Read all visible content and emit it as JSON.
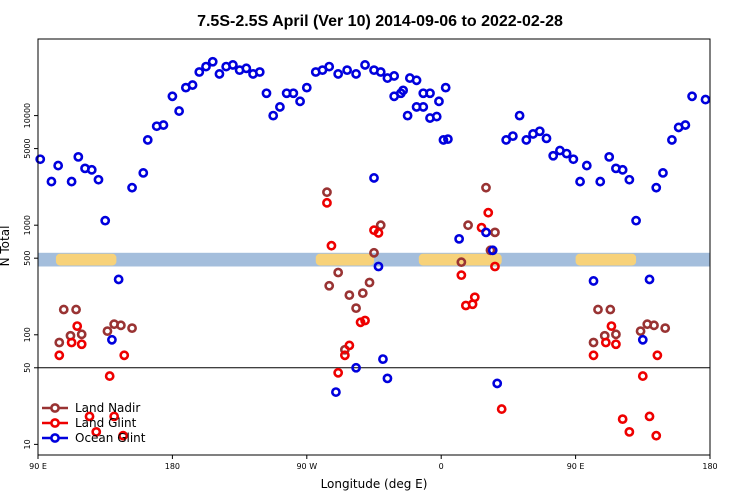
{
  "chart_data": {
    "type": "scatter",
    "title": "7.5S-2.5S April (Ver 10)   2014-09-06 to 2022-02-28",
    "xlabel": "Longitude (deg E)",
    "ylabel": "N Total",
    "x_scale": "linear",
    "y_scale": "log",
    "xlim": [
      90,
      390
    ],
    "ylim": [
      8,
      50000
    ],
    "x_ticks": [
      {
        "value": 90,
        "label": "90 E"
      },
      {
        "value": 150,
        "label": "180"
      },
      {
        "value": 210,
        "label": "90 W"
      },
      {
        "value": 270,
        "label": "0"
      },
      {
        "value": 330,
        "label": "90 E"
      },
      {
        "value": 390,
        "label": "180"
      }
    ],
    "y_ticks": [
      {
        "value": 10,
        "label": "10"
      },
      {
        "value": 50,
        "label": "50"
      },
      {
        "value": 100,
        "label": "100"
      },
      {
        "value": 500,
        "label": "500"
      },
      {
        "value": 1000,
        "label": "1000"
      },
      {
        "value": 5000,
        "label": "5000"
      },
      {
        "value": 10000,
        "label": "10000"
      }
    ],
    "reference_line_y": 50,
    "land_band": {
      "y_low": 420,
      "y_high": 560,
      "band_color": "#a4bedc",
      "land_color": "#f7d27a",
      "land_segments": [
        [
          98,
          125
        ],
        [
          214,
          240
        ],
        [
          260,
          297
        ],
        [
          330,
          357
        ]
      ]
    },
    "legend_placement": "bottom-left",
    "series": [
      {
        "name": "Land Nadir",
        "color": "#993333",
        "points": [
          [
            99.5,
            85
          ],
          [
            101.5,
            170
          ],
          [
            104.5,
            98
          ],
          [
            107,
            170
          ],
          [
            109.5,
            101
          ],
          [
            121,
            108
          ],
          [
            124,
            125
          ],
          [
            127,
            122
          ],
          [
            132,
            115
          ],
          [
            219,
            2000
          ],
          [
            220,
            280
          ],
          [
            224,
            370
          ],
          [
            227,
            73
          ],
          [
            229,
            230
          ],
          [
            232,
            175
          ],
          [
            235,
            240
          ],
          [
            238,
            300
          ],
          [
            240,
            560
          ],
          [
            243,
            1000
          ],
          [
            279,
            460
          ],
          [
            282,
            1000
          ],
          [
            290,
            2200
          ],
          [
            292,
            590
          ],
          [
            294,
            860
          ],
          [
            338,
            85
          ],
          [
            340,
            170
          ],
          [
            343,
            98
          ],
          [
            345.5,
            170
          ],
          [
            348,
            101
          ],
          [
            359,
            108
          ],
          [
            362,
            125
          ],
          [
            365,
            122
          ],
          [
            370,
            115
          ]
        ]
      },
      {
        "name": "Land Glint",
        "color": "#ee0000",
        "points": [
          [
            99.5,
            65
          ],
          [
            105,
            85
          ],
          [
            107.5,
            120
          ],
          [
            109.5,
            82
          ],
          [
            113,
            18
          ],
          [
            116,
            13
          ],
          [
            122,
            42
          ],
          [
            124,
            18
          ],
          [
            128,
            12
          ],
          [
            128.5,
            65
          ],
          [
            219,
            1600
          ],
          [
            221,
            650
          ],
          [
            224,
            45
          ],
          [
            227,
            65
          ],
          [
            229,
            80
          ],
          [
            234,
            130
          ],
          [
            236,
            135
          ],
          [
            240,
            900
          ],
          [
            242,
            850
          ],
          [
            279,
            350
          ],
          [
            281,
            185
          ],
          [
            284,
            190
          ],
          [
            285,
            220
          ],
          [
            288,
            950
          ],
          [
            291,
            1300
          ],
          [
            294,
            420
          ],
          [
            297,
            21
          ],
          [
            338,
            65
          ],
          [
            343.5,
            85
          ],
          [
            346,
            120
          ],
          [
            348,
            82
          ],
          [
            351,
            17
          ],
          [
            354,
            13
          ],
          [
            360,
            42
          ],
          [
            363,
            18
          ],
          [
            366,
            12
          ],
          [
            366.5,
            65
          ]
        ]
      },
      {
        "name": "Ocean Glint",
        "color": "#0000dd",
        "points": [
          [
            91,
            4000
          ],
          [
            96,
            2500
          ],
          [
            99,
            3500
          ],
          [
            105,
            2500
          ],
          [
            108,
            4200
          ],
          [
            111,
            3300
          ],
          [
            114,
            3200
          ],
          [
            117,
            2600
          ],
          [
            120,
            1100
          ],
          [
            123,
            90
          ],
          [
            126,
            320
          ],
          [
            132,
            2200
          ],
          [
            137,
            3000
          ],
          [
            139,
            6000
          ],
          [
            143,
            8000
          ],
          [
            146,
            8200
          ],
          [
            150,
            15000
          ],
          [
            153,
            11000
          ],
          [
            156,
            18000
          ],
          [
            159,
            19000
          ],
          [
            162,
            25000
          ],
          [
            165,
            28000
          ],
          [
            168,
            31000
          ],
          [
            171,
            24000
          ],
          [
            174,
            28000
          ],
          [
            177,
            29000
          ],
          [
            180,
            26000
          ],
          [
            183,
            27000
          ],
          [
            186,
            24000
          ],
          [
            189,
            25000
          ],
          [
            192,
            16000
          ],
          [
            195,
            10000
          ],
          [
            198,
            12000
          ],
          [
            201,
            16000
          ],
          [
            204,
            16000
          ],
          [
            207,
            13500
          ],
          [
            210,
            18000
          ],
          [
            214,
            25000
          ],
          [
            217,
            26000
          ],
          [
            220,
            28000
          ],
          [
            224,
            24000
          ],
          [
            228,
            26000
          ],
          [
            232,
            24000
          ],
          [
            236,
            29000
          ],
          [
            240,
            26000
          ],
          [
            243,
            25000
          ],
          [
            246,
            22000
          ],
          [
            249,
            23000
          ],
          [
            252,
            16000
          ],
          [
            255,
            10000
          ],
          [
            259,
            12000
          ],
          [
            262,
            16000
          ],
          [
            265,
            16000
          ],
          [
            269,
            13500
          ],
          [
            272,
            18000
          ],
          [
            223,
            30
          ],
          [
            232,
            50
          ],
          [
            240,
            2700
          ],
          [
            242,
            420
          ],
          [
            244,
            60
          ],
          [
            246,
            40
          ],
          [
            249,
            15000
          ],
          [
            253,
            17000
          ],
          [
            256,
            22000
          ],
          [
            259,
            21000
          ],
          [
            262,
            12000
          ],
          [
            265,
            9500
          ],
          [
            268,
            9800
          ],
          [
            271,
            6000
          ],
          [
            273,
            6100
          ],
          [
            278,
            750
          ],
          [
            290,
            860
          ],
          [
            293,
            590
          ],
          [
            295,
            36
          ],
          [
            299,
            6000
          ],
          [
            302,
            6500
          ],
          [
            305,
            10000
          ],
          [
            308,
            6000
          ],
          [
            311,
            6800
          ],
          [
            314,
            7200
          ],
          [
            317,
            6200
          ],
          [
            320,
            4300
          ],
          [
            323,
            4800
          ],
          [
            326,
            4500
          ],
          [
            329,
            4000
          ],
          [
            332,
            2500
          ],
          [
            335,
            3500
          ],
          [
            338,
            310
          ],
          [
            341,
            2500
          ],
          [
            345,
            4200
          ],
          [
            348,
            3300
          ],
          [
            351,
            3200
          ],
          [
            354,
            2600
          ],
          [
            357,
            1100
          ],
          [
            360,
            90
          ],
          [
            363,
            320
          ],
          [
            366,
            2200
          ],
          [
            369,
            3000
          ],
          [
            373,
            6000
          ],
          [
            376,
            7800
          ],
          [
            379,
            8200
          ],
          [
            382,
            15000
          ],
          [
            388,
            14000
          ]
        ]
      }
    ]
  }
}
